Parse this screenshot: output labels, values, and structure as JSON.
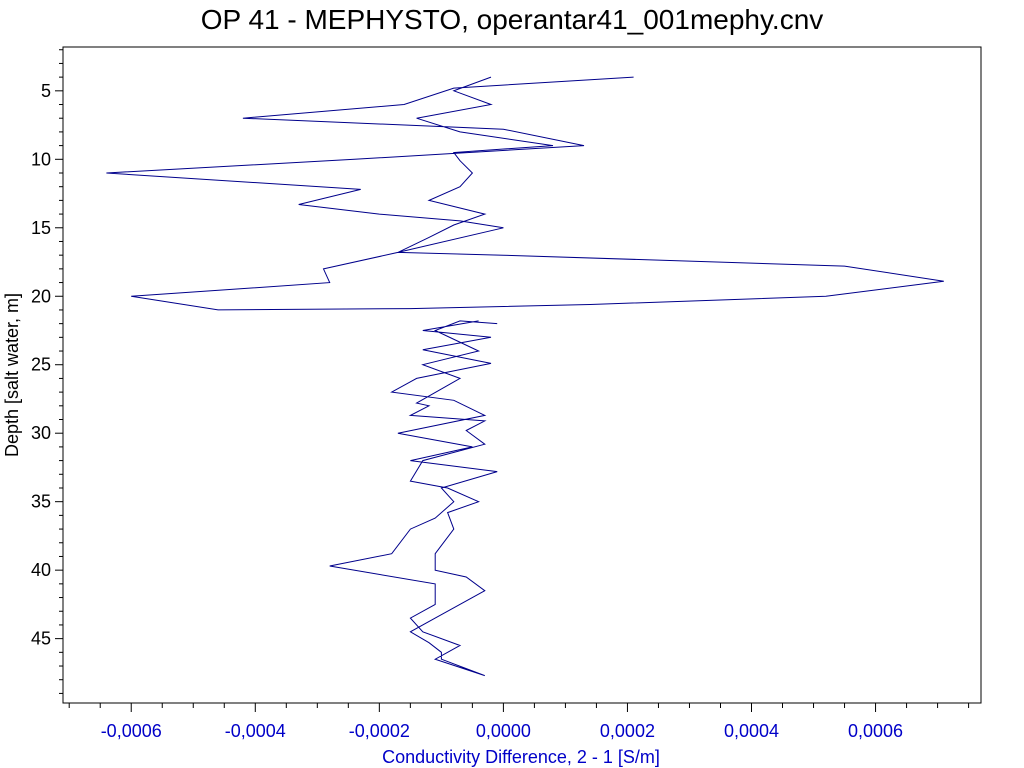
{
  "colors": {
    "series": "#00008B",
    "x_axis_text": "#0000C8",
    "frame": "#000000"
  },
  "chart_data": {
    "type": "line",
    "title": "OP 41 - MEPHYSTO, operantar41_001mephy.cnv",
    "xlabel": "Conductivity Difference, 2 - 1 [S/m]",
    "ylabel": "Depth [salt water, m]",
    "xlim": [
      -0.00071,
      0.00077
    ],
    "ylim": [
      1.8,
      49.7
    ],
    "y_inverted": true,
    "x_ticks": [
      {
        "value": -0.0006,
        "label": "-0,0006"
      },
      {
        "value": -0.0004,
        "label": "-0,0004"
      },
      {
        "value": -0.0002,
        "label": "-0,0002"
      },
      {
        "value": 0.0,
        "label": "0,0000"
      },
      {
        "value": 0.0002,
        "label": "0,0002"
      },
      {
        "value": 0.0004,
        "label": "0,0004"
      },
      {
        "value": 0.0006,
        "label": "0,0006"
      }
    ],
    "y_ticks": [
      {
        "value": 5,
        "label": "5"
      },
      {
        "value": 10,
        "label": "10"
      },
      {
        "value": 15,
        "label": "15"
      },
      {
        "value": 20,
        "label": "20"
      },
      {
        "value": 25,
        "label": "25"
      },
      {
        "value": 30,
        "label": "30"
      },
      {
        "value": 35,
        "label": "35"
      },
      {
        "value": 40,
        "label": "40"
      },
      {
        "value": 45,
        "label": "45"
      }
    ],
    "grid": false,
    "series": [
      {
        "points": [
          [
            0.00021,
            4.0
          ],
          [
            -8e-05,
            4.8
          ],
          [
            -0.00016,
            6.0
          ],
          [
            -0.00042,
            7.0
          ],
          [
            0.0,
            7.8
          ],
          [
            0.00013,
            9.0
          ],
          [
            -0.00024,
            10.0
          ],
          [
            -0.00064,
            11.0
          ],
          [
            -0.00023,
            12.2
          ],
          [
            -0.00033,
            13.3
          ],
          [
            -0.0002,
            14.0
          ],
          [
            -7e-05,
            14.5
          ],
          [
            0.0,
            15.0
          ],
          [
            -0.00017,
            16.8
          ],
          [
            0.0,
            17.0
          ],
          [
            0.00055,
            17.8
          ],
          [
            0.00071,
            18.9
          ],
          [
            0.00052,
            20.0
          ],
          [
            0.00014,
            20.6
          ],
          [
            -0.00015,
            20.9
          ],
          [
            -0.00046,
            21.0
          ],
          [
            -0.0006,
            20.0
          ],
          [
            -0.00028,
            19.0
          ],
          [
            -0.00029,
            18.0
          ],
          [
            -0.00017,
            16.8
          ],
          [
            -0.00012,
            15.7
          ],
          [
            -8e-05,
            14.8
          ],
          [
            -3e-05,
            14.0
          ],
          [
            -0.00012,
            13.0
          ],
          [
            -7e-05,
            12.0
          ],
          [
            -5e-05,
            11.0
          ],
          [
            -7e-05,
            10.1
          ],
          [
            -8e-05,
            9.5
          ],
          [
            8e-05,
            9.0
          ],
          [
            -7e-05,
            8.0
          ],
          [
            -0.00014,
            7.0
          ],
          [
            -2e-05,
            6.0
          ],
          [
            -8e-05,
            5.0
          ],
          [
            -2e-05,
            4.0
          ]
        ]
      },
      {
        "points": [
          [
            -4e-05,
            21.8
          ],
          [
            -0.00013,
            22.5
          ],
          [
            -2e-05,
            23.0
          ],
          [
            -0.00013,
            23.9
          ],
          [
            -2e-05,
            24.9
          ],
          [
            -0.00014,
            26.0
          ],
          [
            -0.00018,
            27.0
          ],
          [
            -8e-05,
            27.6
          ],
          [
            -3e-05,
            28.7
          ],
          [
            -0.00017,
            30.0
          ],
          [
            -5e-05,
            31.0
          ],
          [
            -0.00015,
            32.0
          ],
          [
            -1e-05,
            32.8
          ],
          [
            -0.0001,
            34.0
          ],
          [
            -8e-05,
            35.0
          ],
          [
            -0.00011,
            36.2
          ],
          [
            -0.00015,
            37.0
          ],
          [
            -0.00018,
            38.8
          ],
          [
            -0.00028,
            39.7
          ],
          [
            -0.00011,
            41.0
          ],
          [
            -0.00011,
            42.5
          ],
          [
            -0.00015,
            43.5
          ],
          [
            -0.00013,
            44.5
          ],
          [
            -7e-05,
            45.5
          ],
          [
            -0.00011,
            46.5
          ],
          [
            -3e-05,
            47.7
          ],
          [
            -0.0001,
            46.5
          ],
          [
            -0.0001,
            46.0
          ],
          [
            -0.00012,
            45.3
          ],
          [
            -0.00015,
            44.5
          ],
          [
            -0.00011,
            43.5
          ],
          [
            -3e-05,
            41.5
          ],
          [
            -6e-05,
            40.5
          ],
          [
            -0.00011,
            40.0
          ],
          [
            -0.00011,
            38.8
          ],
          [
            -8e-05,
            37.0
          ],
          [
            -9e-05,
            35.8
          ],
          [
            -4e-05,
            35.0
          ],
          [
            -9e-05,
            34.0
          ],
          [
            -0.00015,
            33.5
          ],
          [
            -0.00013,
            32.0
          ],
          [
            -3e-05,
            30.8
          ],
          [
            -6e-05,
            29.8
          ],
          [
            -3e-05,
            29.1
          ],
          [
            -0.00015,
            28.7
          ],
          [
            -0.00012,
            28.0
          ],
          [
            -0.00014,
            27.8
          ],
          [
            -7e-05,
            26.0
          ],
          [
            -0.00013,
            25.0
          ],
          [
            -4e-05,
            24.0
          ],
          [
            -0.00011,
            22.5
          ],
          [
            -7e-05,
            21.8
          ],
          [
            -1e-05,
            22.0
          ]
        ]
      }
    ]
  }
}
